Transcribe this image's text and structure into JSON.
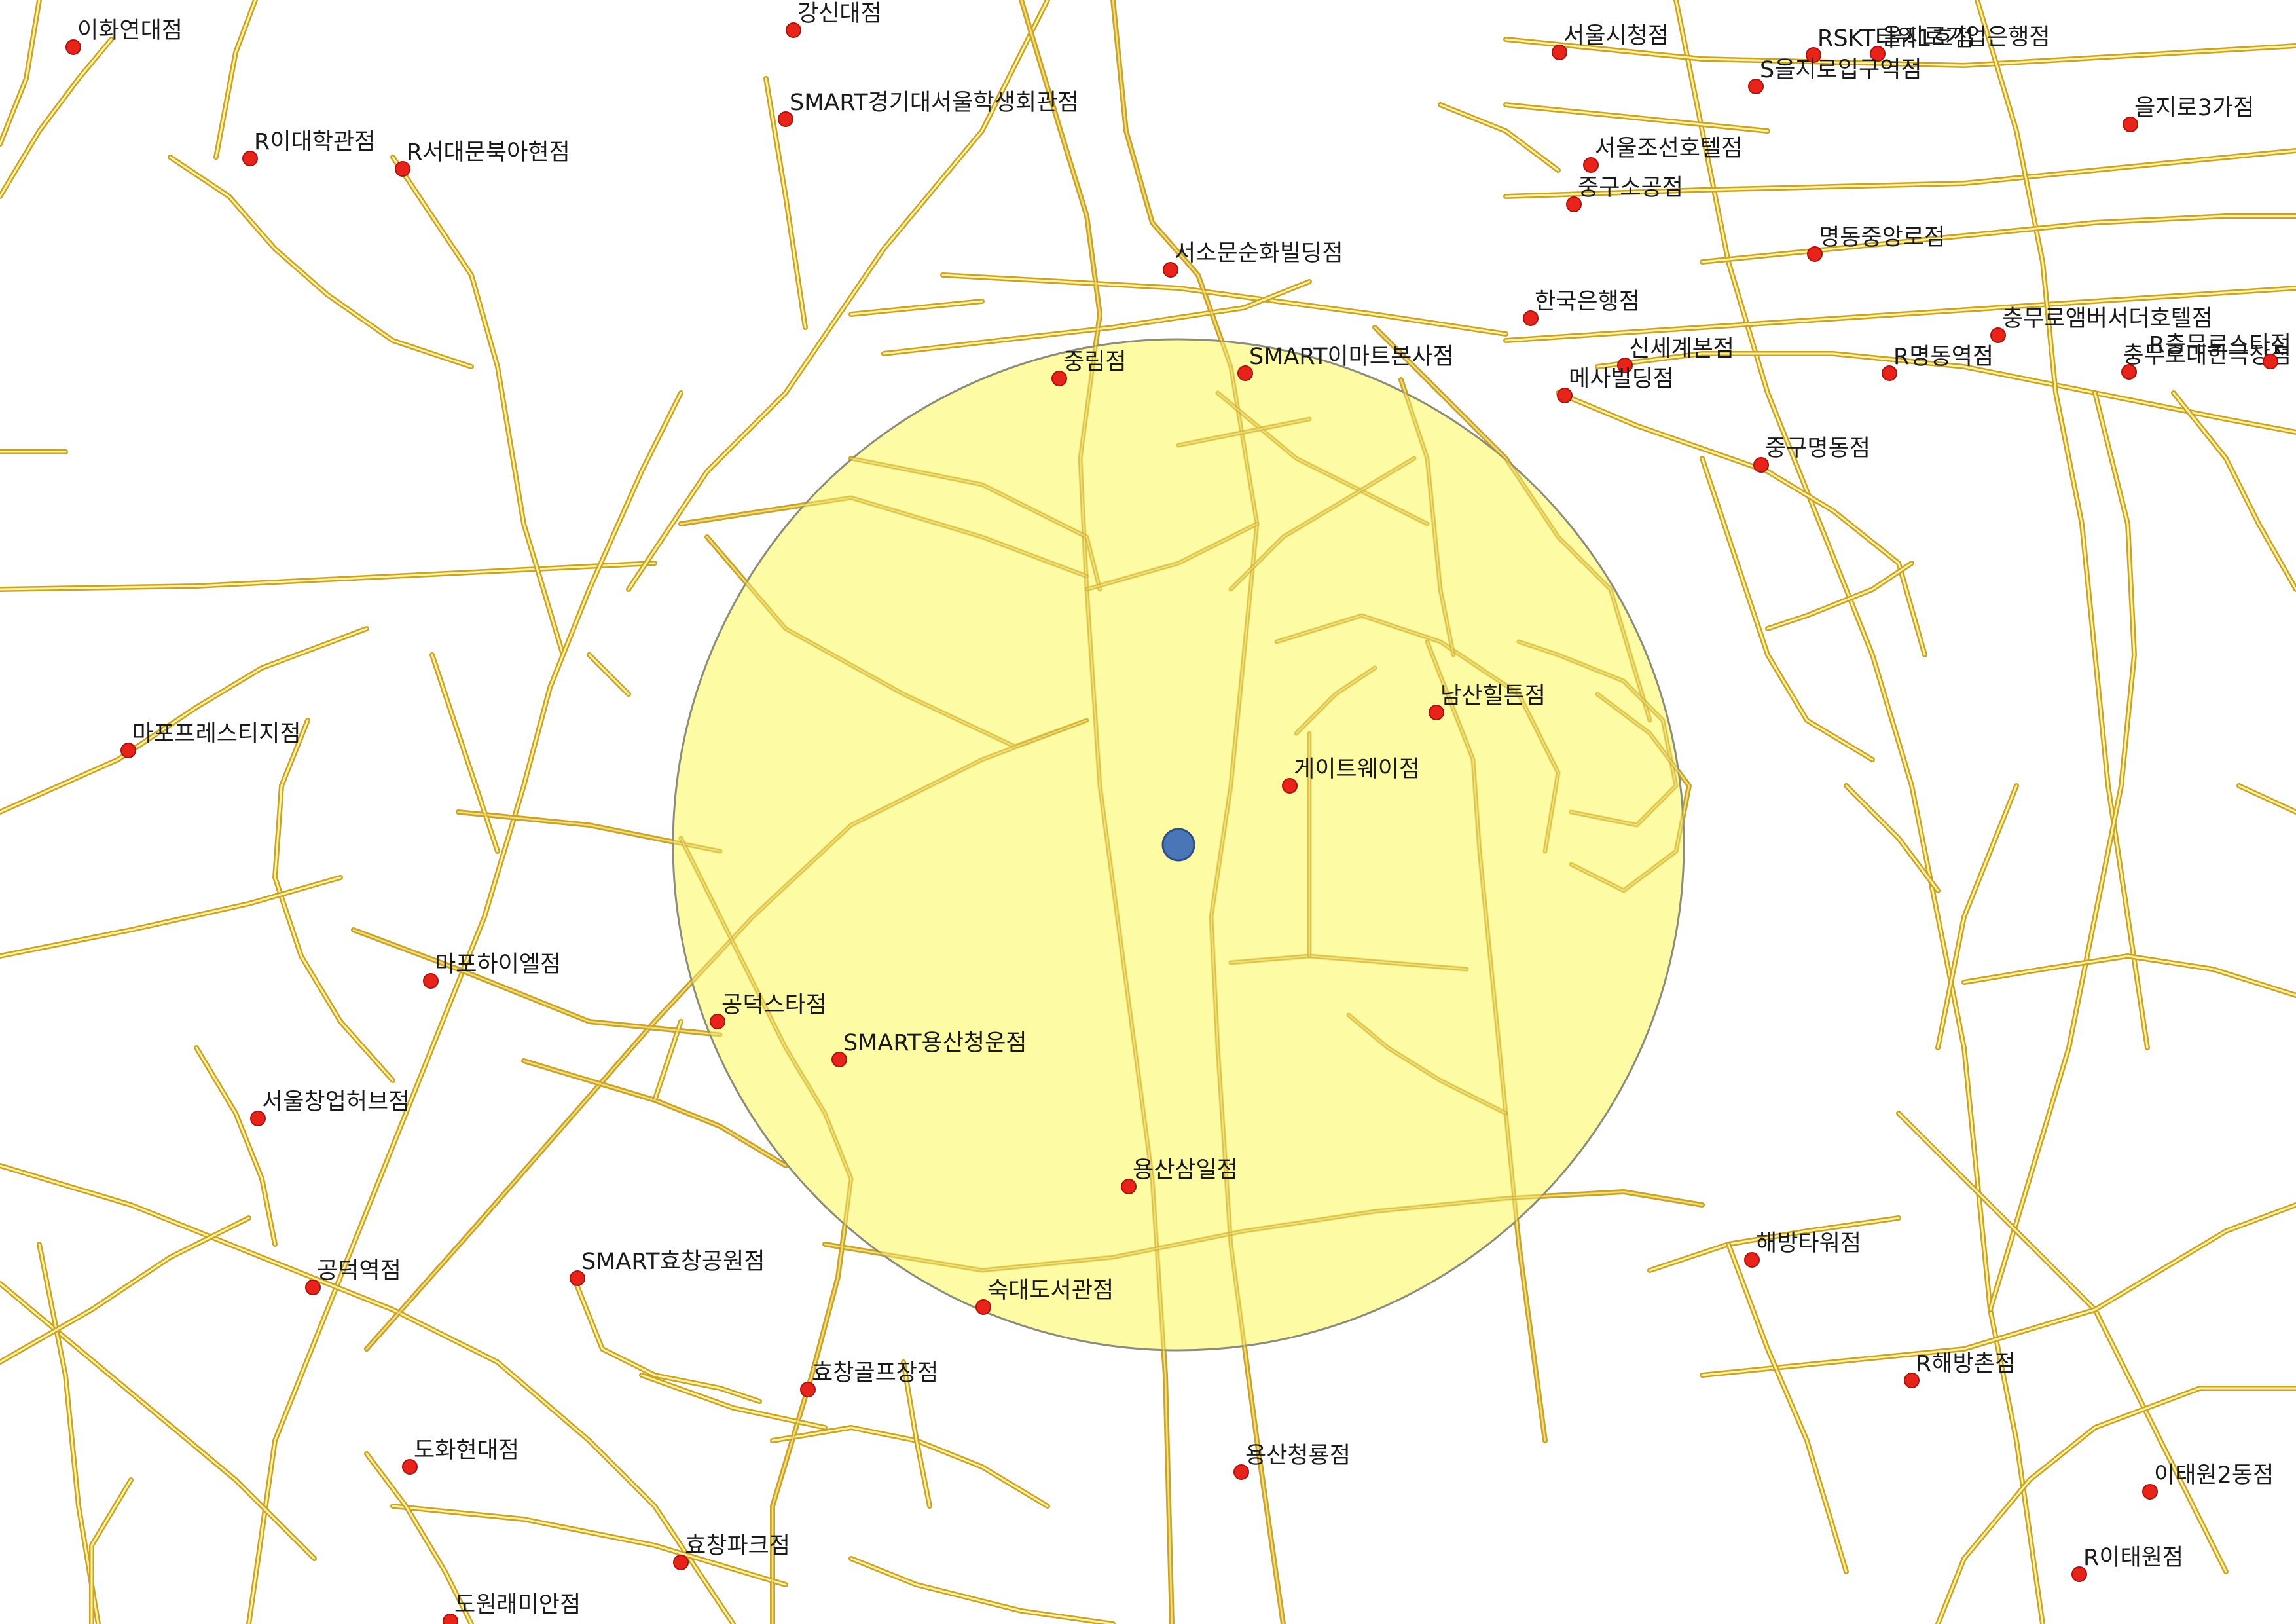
{
  "map": {
    "colors": {
      "background": "#ffffff",
      "road_casing": "#c9a227",
      "road_fill": "#fff3a0",
      "buffer_fill": "#fdfa8a",
      "buffer_stroke": "#8c8c7a",
      "poi_marker": "#e8231a",
      "center_marker": "#4a76b8"
    },
    "center_marker": {
      "name": "center-point",
      "icon": "blue-circle-icon"
    },
    "buffer": {
      "name": "search-radius-buffer"
    },
    "pois": [
      {
        "label": "이화연대점"
      },
      {
        "label": "강신대점"
      },
      {
        "label": "R이대학관점"
      },
      {
        "label": "R서대문북아현점"
      },
      {
        "label": "SMART경기대서울학생회관점"
      },
      {
        "label": "서울시청점"
      },
      {
        "label": "RSKT타워1호점"
      },
      {
        "label": "을지로기업은행점"
      },
      {
        "label": "S을지로입구역점"
      },
      {
        "label": "을지로3가점"
      },
      {
        "label": "서울조선호텔점"
      },
      {
        "label": "중구소공점"
      },
      {
        "label": "명동중앙로점"
      },
      {
        "label": "서소문순화빌딩점"
      },
      {
        "label": "한국은행점"
      },
      {
        "label": "충무로앰버서더호텔점"
      },
      {
        "label": "충무로대한극장점"
      },
      {
        "label": "R충무로스타점"
      },
      {
        "label": "중림점"
      },
      {
        "label": "SMART이마트본사점"
      },
      {
        "label": "신세계본점"
      },
      {
        "label": "메사빌딩점"
      },
      {
        "label": "R명동역점"
      },
      {
        "label": "중구명동점"
      },
      {
        "label": "남산힐튼점"
      },
      {
        "label": "게이트웨이점"
      },
      {
        "label": "마포프레스티지점"
      },
      {
        "label": "마포하이엘점"
      },
      {
        "label": "공덕스타점"
      },
      {
        "label": "SMART용산청운점"
      },
      {
        "label": "서울창업허브점"
      },
      {
        "label": "용산삼일점"
      },
      {
        "label": "해방타워점"
      },
      {
        "label": "공덕역점"
      },
      {
        "label": "SMART효창공원점"
      },
      {
        "label": "숙대도서관점"
      },
      {
        "label": "효창골프장점"
      },
      {
        "label": "R해방촌점"
      },
      {
        "label": "도화현대점"
      },
      {
        "label": "용산청룡점"
      },
      {
        "label": "이태원2동점"
      },
      {
        "label": "효창파크점"
      },
      {
        "label": "R이태원점"
      },
      {
        "label": "도원래미안점"
      }
    ]
  }
}
